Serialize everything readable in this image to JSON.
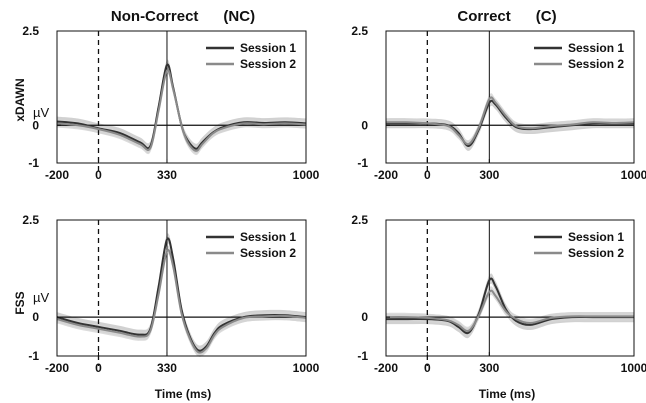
{
  "column_titles": [
    "Non-Correct      (NC)",
    "Correct      (C)"
  ],
  "row_labels": [
    "xDAWN",
    "FSS"
  ],
  "unit_label": "µV",
  "chart_data": [
    {
      "type": "line",
      "row": "xDAWN",
      "column": "Non-Correct (NC)",
      "xlabel": "",
      "ylabel": "µV",
      "xlim": [
        -200,
        1000
      ],
      "ylim": [
        -1,
        2.5
      ],
      "yticks": [
        "2.5",
        "0",
        "-1"
      ],
      "xticks": [
        "-200",
        "0",
        "330",
        "1000"
      ],
      "xtick_values": [
        -200,
        0,
        330,
        1000
      ],
      "ytick_values": [
        2.5,
        0,
        -1
      ],
      "markers": {
        "onset": 0,
        "peak": 330
      },
      "legend": "top-right",
      "series": [
        {
          "name": "Session 1",
          "color": "#333333",
          "x": [
            -200,
            -100,
            0,
            100,
            200,
            250,
            290,
            330,
            360,
            400,
            430,
            470,
            500,
            550,
            600,
            700,
            800,
            900,
            1000
          ],
          "y": [
            0.1,
            0.05,
            -0.08,
            -0.2,
            -0.45,
            -0.55,
            0.5,
            1.6,
            1.0,
            0.0,
            -0.4,
            -0.62,
            -0.45,
            -0.2,
            -0.05,
            0.08,
            0.06,
            0.08,
            0.05
          ]
        },
        {
          "name": "Session 2",
          "color": "#8a8a8a",
          "x": [
            -200,
            -100,
            0,
            100,
            200,
            250,
            290,
            330,
            360,
            400,
            430,
            470,
            500,
            550,
            600,
            700,
            800,
            900,
            1000
          ],
          "y": [
            0.05,
            0.0,
            -0.1,
            -0.25,
            -0.5,
            -0.6,
            0.4,
            1.45,
            0.95,
            0.0,
            -0.45,
            -0.68,
            -0.5,
            -0.22,
            -0.08,
            0.05,
            0.03,
            0.05,
            0.02
          ]
        }
      ]
    },
    {
      "type": "line",
      "row": "xDAWN",
      "column": "Correct (C)",
      "xlabel": "",
      "ylabel": "",
      "xlim": [
        -200,
        1000
      ],
      "ylim": [
        -1,
        2.5
      ],
      "yticks": [
        "2.5",
        "0",
        "-1"
      ],
      "xticks": [
        "-200",
        "0",
        "300",
        "1000"
      ],
      "xtick_values": [
        -200,
        0,
        300,
        1000
      ],
      "ytick_values": [
        2.5,
        0,
        -1
      ],
      "markers": {
        "onset": 0,
        "peak": 300
      },
      "legend": "top-right",
      "series": [
        {
          "name": "Session 1",
          "color": "#333333",
          "x": [
            -200,
            -100,
            0,
            100,
            150,
            200,
            250,
            300,
            330,
            380,
            430,
            500,
            600,
            700,
            800,
            900,
            1000
          ],
          "y": [
            0.05,
            0.05,
            0.05,
            0.0,
            -0.2,
            -0.55,
            -0.1,
            0.6,
            0.55,
            0.2,
            -0.05,
            -0.1,
            -0.05,
            0.0,
            0.05,
            0.05,
            0.05
          ]
        },
        {
          "name": "Session 2",
          "color": "#8a8a8a",
          "x": [
            -200,
            -100,
            0,
            100,
            150,
            200,
            250,
            300,
            330,
            380,
            430,
            500,
            600,
            700,
            800,
            900,
            1000
          ],
          "y": [
            0.08,
            0.08,
            0.05,
            -0.02,
            -0.25,
            -0.5,
            -0.05,
            0.7,
            0.6,
            0.25,
            -0.02,
            -0.08,
            -0.02,
            0.02,
            0.08,
            0.06,
            0.08
          ]
        }
      ]
    },
    {
      "type": "line",
      "row": "FSS",
      "column": "Non-Correct (NC)",
      "xlabel": "Time (ms)",
      "ylabel": "µV",
      "xlim": [
        -200,
        1000
      ],
      "ylim": [
        -1,
        2.5
      ],
      "yticks": [
        "2.5",
        "0",
        "-1"
      ],
      "xticks": [
        "-200",
        "0",
        "330",
        "1000"
      ],
      "xtick_values": [
        -200,
        0,
        330,
        1000
      ],
      "ytick_values": [
        2.5,
        0,
        -1
      ],
      "markers": {
        "onset": 0,
        "peak": 330
      },
      "legend": "top-right",
      "series": [
        {
          "name": "Session 1",
          "color": "#333333",
          "x": [
            -200,
            -100,
            0,
            100,
            200,
            250,
            290,
            330,
            360,
            400,
            440,
            480,
            520,
            560,
            600,
            700,
            800,
            900,
            1000
          ],
          "y": [
            0.0,
            -0.15,
            -0.25,
            -0.35,
            -0.45,
            -0.3,
            0.8,
            2.0,
            1.5,
            0.2,
            -0.5,
            -0.85,
            -0.75,
            -0.4,
            -0.2,
            0.0,
            0.05,
            0.05,
            0.0
          ]
        },
        {
          "name": "Session 2",
          "color": "#8a8a8a",
          "x": [
            -200,
            -100,
            0,
            100,
            200,
            250,
            290,
            330,
            360,
            400,
            440,
            480,
            520,
            560,
            600,
            700,
            800,
            900,
            1000
          ],
          "y": [
            -0.05,
            -0.2,
            -0.3,
            -0.4,
            -0.5,
            -0.35,
            0.6,
            1.7,
            1.3,
            0.1,
            -0.55,
            -0.9,
            -0.8,
            -0.45,
            -0.25,
            -0.02,
            0.02,
            0.03,
            -0.02
          ]
        }
      ]
    },
    {
      "type": "line",
      "row": "FSS",
      "column": "Correct (C)",
      "xlabel": "Time (ms)",
      "ylabel": "",
      "xlim": [
        -200,
        1000
      ],
      "ylim": [
        -1,
        2.5
      ],
      "yticks": [
        "2.5",
        "0",
        "-1"
      ],
      "xticks": [
        "-200",
        "0",
        "300",
        "1000"
      ],
      "xtick_values": [
        -200,
        0,
        300,
        1000
      ],
      "ytick_values": [
        2.5,
        0,
        -1
      ],
      "markers": {
        "onset": 0,
        "peak": 300
      },
      "legend": "top-right",
      "series": [
        {
          "name": "Session 1",
          "color": "#333333",
          "x": [
            -200,
            -100,
            0,
            100,
            150,
            200,
            250,
            300,
            330,
            380,
            430,
            500,
            600,
            700,
            800,
            900,
            1000
          ],
          "y": [
            -0.05,
            -0.05,
            -0.05,
            -0.1,
            -0.25,
            -0.4,
            0.1,
            0.95,
            0.8,
            0.2,
            -0.1,
            -0.2,
            -0.05,
            0.0,
            0.0,
            0.0,
            0.0
          ]
        },
        {
          "name": "Session 2",
          "color": "#8a8a8a",
          "x": [
            -200,
            -100,
            0,
            100,
            150,
            200,
            250,
            300,
            330,
            380,
            430,
            500,
            600,
            700,
            800,
            900,
            1000
          ],
          "y": [
            0.0,
            0.0,
            -0.02,
            -0.08,
            -0.2,
            -0.35,
            0.05,
            0.65,
            0.55,
            0.15,
            -0.05,
            -0.15,
            -0.02,
            0.02,
            0.02,
            0.02,
            0.02
          ]
        }
      ]
    }
  ]
}
